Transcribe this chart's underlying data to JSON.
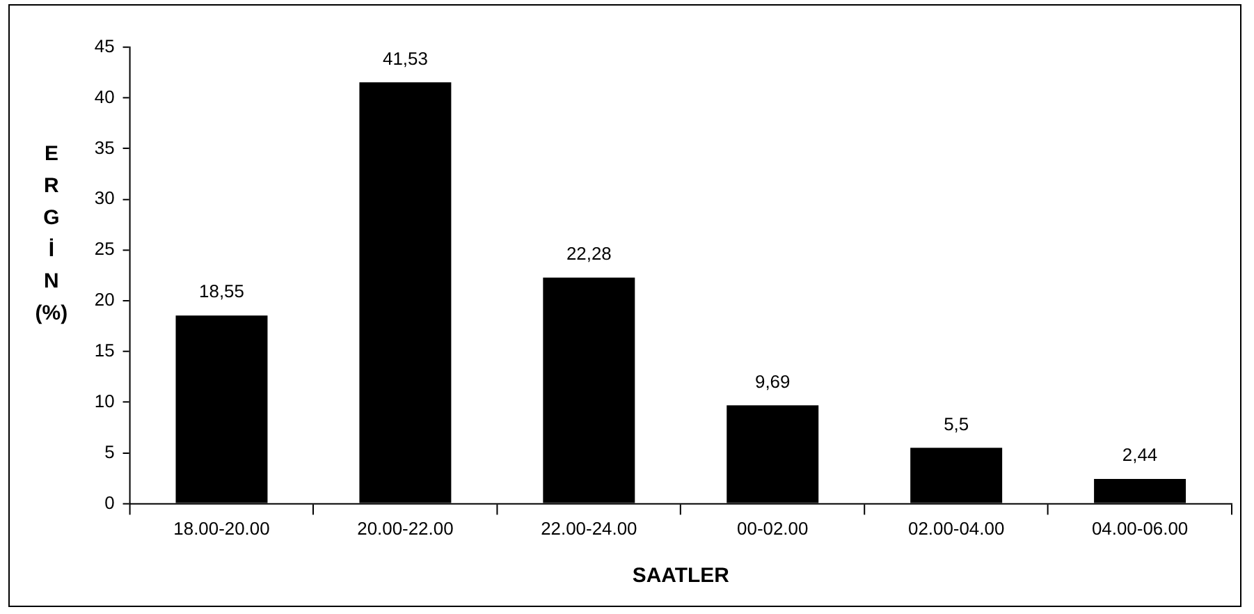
{
  "chart_data": {
    "type": "bar",
    "xlabel": "SAATLER",
    "ylabel": "ERGİN (%)",
    "categories": [
      "18.00-20.00",
      "20.00-22.00",
      "22.00-24.00",
      "00-02.00",
      "02.00-04.00",
      "04.00-06.00"
    ],
    "values": [
      18.55,
      41.53,
      22.28,
      9.69,
      5.5,
      2.44
    ],
    "value_labels": [
      "18,55",
      "41,53",
      "22,28",
      "9,69",
      "5,5",
      "2,44"
    ],
    "color": "#000000",
    "ylim": [
      0,
      45
    ],
    "yticks": [
      0,
      5,
      10,
      15,
      20,
      25,
      30,
      35,
      40,
      45
    ],
    "grid": false,
    "legend": false
  }
}
